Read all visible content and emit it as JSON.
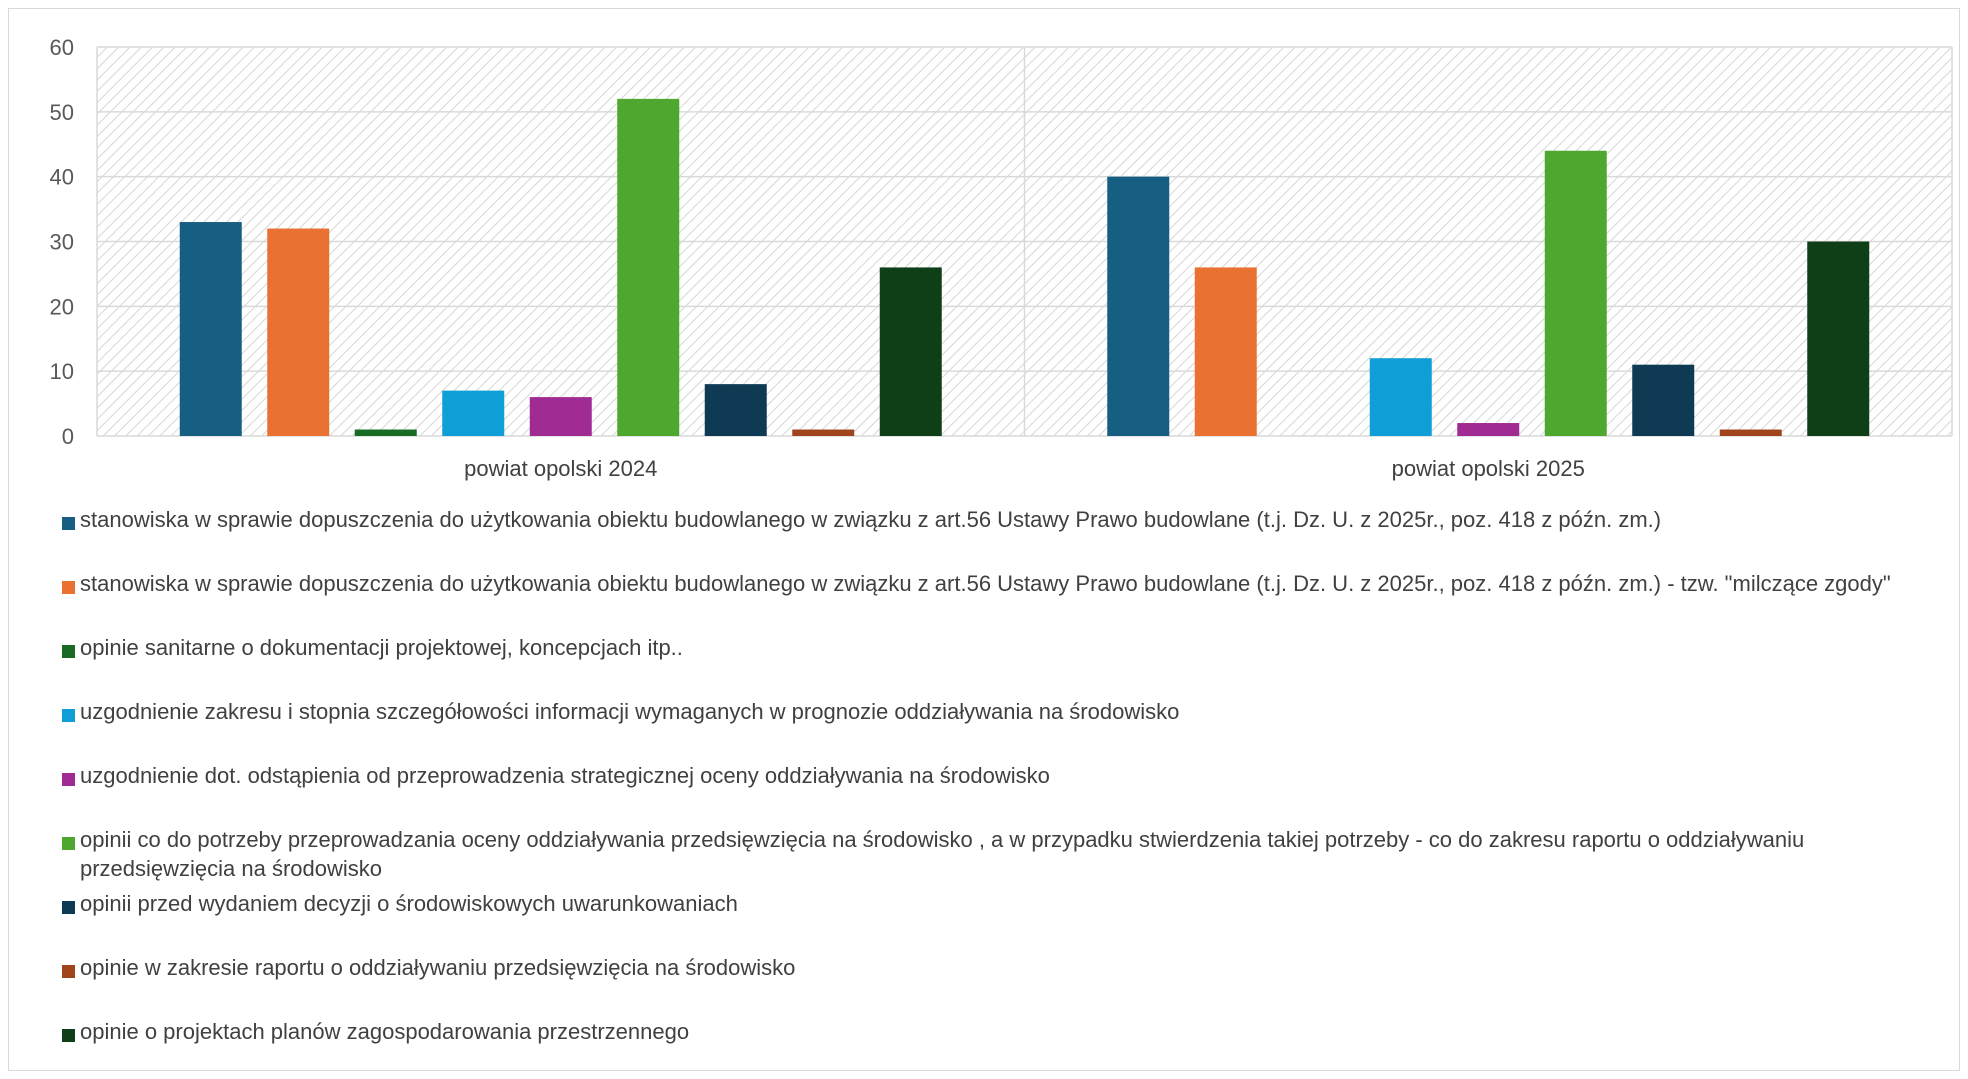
{
  "chart_data": {
    "type": "bar",
    "categories": [
      "powiat opolski 2024",
      "powiat opolski 2025"
    ],
    "y_ticks": [
      "0",
      "10",
      "20",
      "30",
      "40",
      "50",
      "60"
    ],
    "ylim": [
      0,
      60
    ],
    "grid": true,
    "legend_position": "bottom",
    "series": [
      {
        "name": "stanowiska w sprawie dopuszczenia do użytkowania obiektu budowlanego w związku z art.56 Ustawy Prawo budowlane (t.j. Dz. U. z 2025r., poz. 418 z późn. zm.)",
        "color": "#175f82",
        "values": [
          33,
          40
        ]
      },
      {
        "name": "stanowiska w sprawie dopuszczenia do użytkowania obiektu budowlanego w związku z art.56 Ustawy Prawo budowlane (t.j. Dz. U. z 2025r., poz. 418 z późn. zm.) - tzw. \"milczące zgody\"",
        "color": "#e97132",
        "values": [
          32,
          26
        ]
      },
      {
        "name": "opinie sanitarne o dokumentacji projektowej, koncepcjach itp..",
        "color": "#196b24",
        "values": [
          1,
          0
        ]
      },
      {
        "name": "uzgodnienie zakresu i stopnia szczegółowości informacji wymaganych w prognozie oddziaływania  na środowisko",
        "color": "#0f9ed5",
        "values": [
          7,
          12
        ]
      },
      {
        "name": "uzgodnienie dot. odstąpienia od przeprowadzenia strategicznej oceny oddziaływania  na środowisko",
        "color": "#a02b93",
        "values": [
          6,
          2
        ]
      },
      {
        "name": "opinii co do potrzeby przeprowadzania oceny oddziaływania przedsięwzięcia na środowisko , a w przypadku stwierdzenia takiej potrzeby - co do zakresu raportu o oddziaływaniu przedsięwzięcia na środowisko",
        "color": "#4ea72e",
        "values": [
          52,
          44
        ]
      },
      {
        "name": "opinii przed wydaniem decyzji o środowiskowych uwarunkowaniach",
        "color": "#0e3a53",
        "values": [
          8,
          11
        ]
      },
      {
        "name": "opinie w zakresie raportu o oddziaływaniu przedsięwzięcia na środowisko",
        "color": "#a0441c",
        "values": [
          1,
          1
        ]
      },
      {
        "name": "opinie o projektach planów zagospodarowania przestrzennego",
        "color": "#0f3f17",
        "values": [
          26,
          30
        ]
      }
    ]
  }
}
